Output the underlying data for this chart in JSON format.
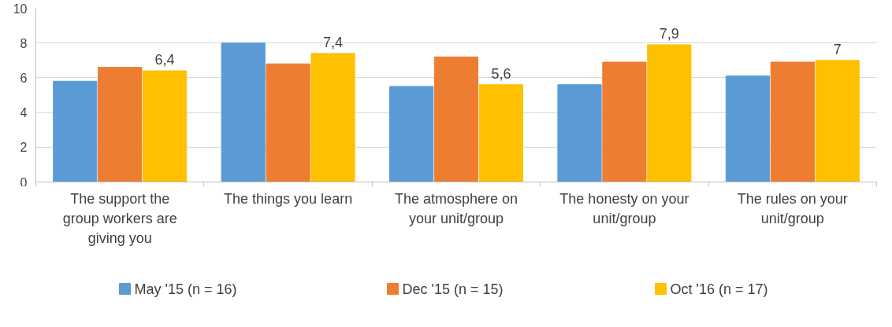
{
  "chart_data": {
    "type": "bar",
    "categories": [
      "The support the group workers are giving you",
      "The things you learn",
      "The atmosphere on your unit/group",
      "The honesty on your unit/group",
      "The rules on your unit/group"
    ],
    "series": [
      {
        "name": "May '15 (n = 16)",
        "color": "#5b9bd5",
        "values": [
          5.8,
          8.0,
          5.5,
          5.6,
          6.1
        ]
      },
      {
        "name": "Dec '15 (n = 15)",
        "color": "#ed7d31",
        "values": [
          6.6,
          6.8,
          7.2,
          6.9,
          6.9
        ]
      },
      {
        "name": "Oct '16 (n = 17)",
        "color": "#ffc000",
        "values": [
          6.4,
          7.4,
          5.6,
          7.9,
          7.0
        ],
        "value_labels": [
          "6,4",
          "7,4",
          "5,6",
          "7,9",
          "7"
        ]
      }
    ],
    "ylim": [
      0,
      10
    ],
    "yticks": [
      0,
      2,
      4,
      6,
      8,
      10
    ],
    "grid": "y",
    "legend": "bottom"
  }
}
